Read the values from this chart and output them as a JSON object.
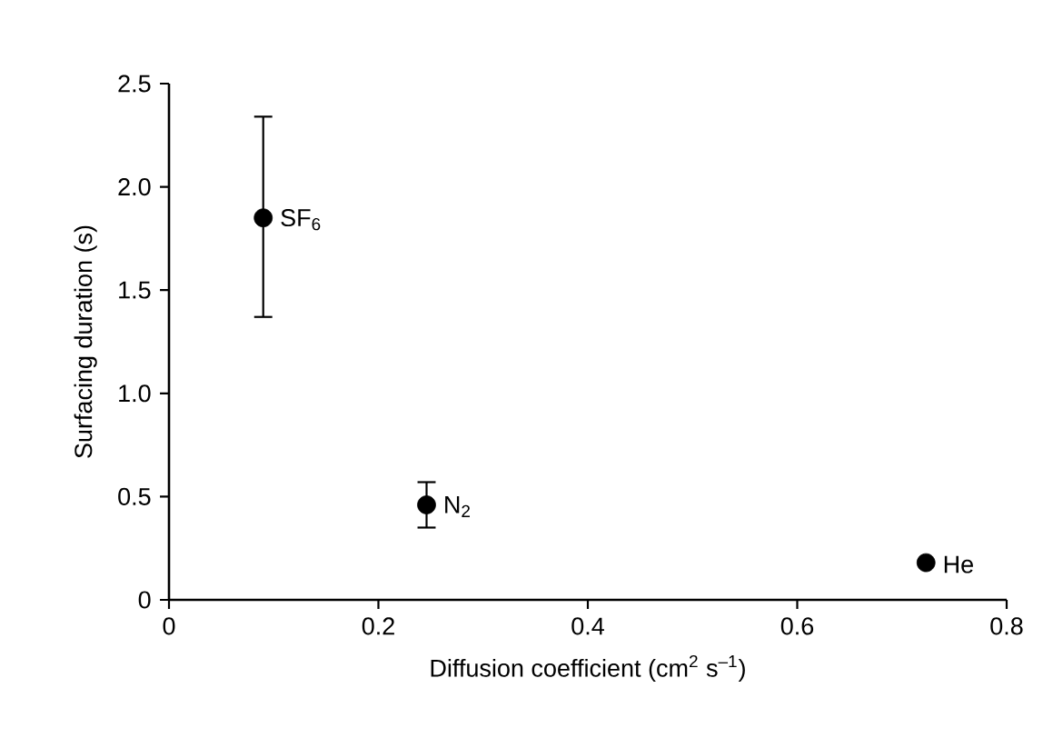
{
  "chart_data": {
    "type": "scatter",
    "xlabel": "Diffusion coefficient (cm$^{2}$ s$^{–1}$)",
    "ylabel": "Surfacing duration (s)",
    "x": [
      0.09,
      0.246,
      0.723
    ],
    "values": [
      1.85,
      0.46,
      0.18
    ],
    "errors": [
      [
        1.37,
        2.34
      ],
      [
        0.35,
        0.57
      ],
      null
    ],
    "color": "#000000",
    "xlim": [
      0,
      0.8
    ],
    "xticks": [
      0,
      0.2,
      0.4,
      0.6,
      0.8
    ],
    "ylim": [
      0,
      2.5
    ],
    "yticks": [
      0,
      {
        "value": 0.5,
        "label": "0.5"
      },
      {
        "value": 1,
        "label": "1.0"
      },
      {
        "value": 1.5,
        "label": "1.5"
      },
      {
        "value": 2,
        "label": "2.0"
      },
      {
        "value": 2.5,
        "label": "2.5"
      }
    ],
    "annotations": [
      {
        "text": "SF$_{6}$",
        "x": 0.09,
        "y": 1.85
      },
      {
        "text": "N$_{2}$",
        "x": 0.246,
        "y": 0.46
      },
      {
        "text": "He",
        "x": 0.723,
        "y": 0.18
      }
    ],
    "grid": false
  }
}
